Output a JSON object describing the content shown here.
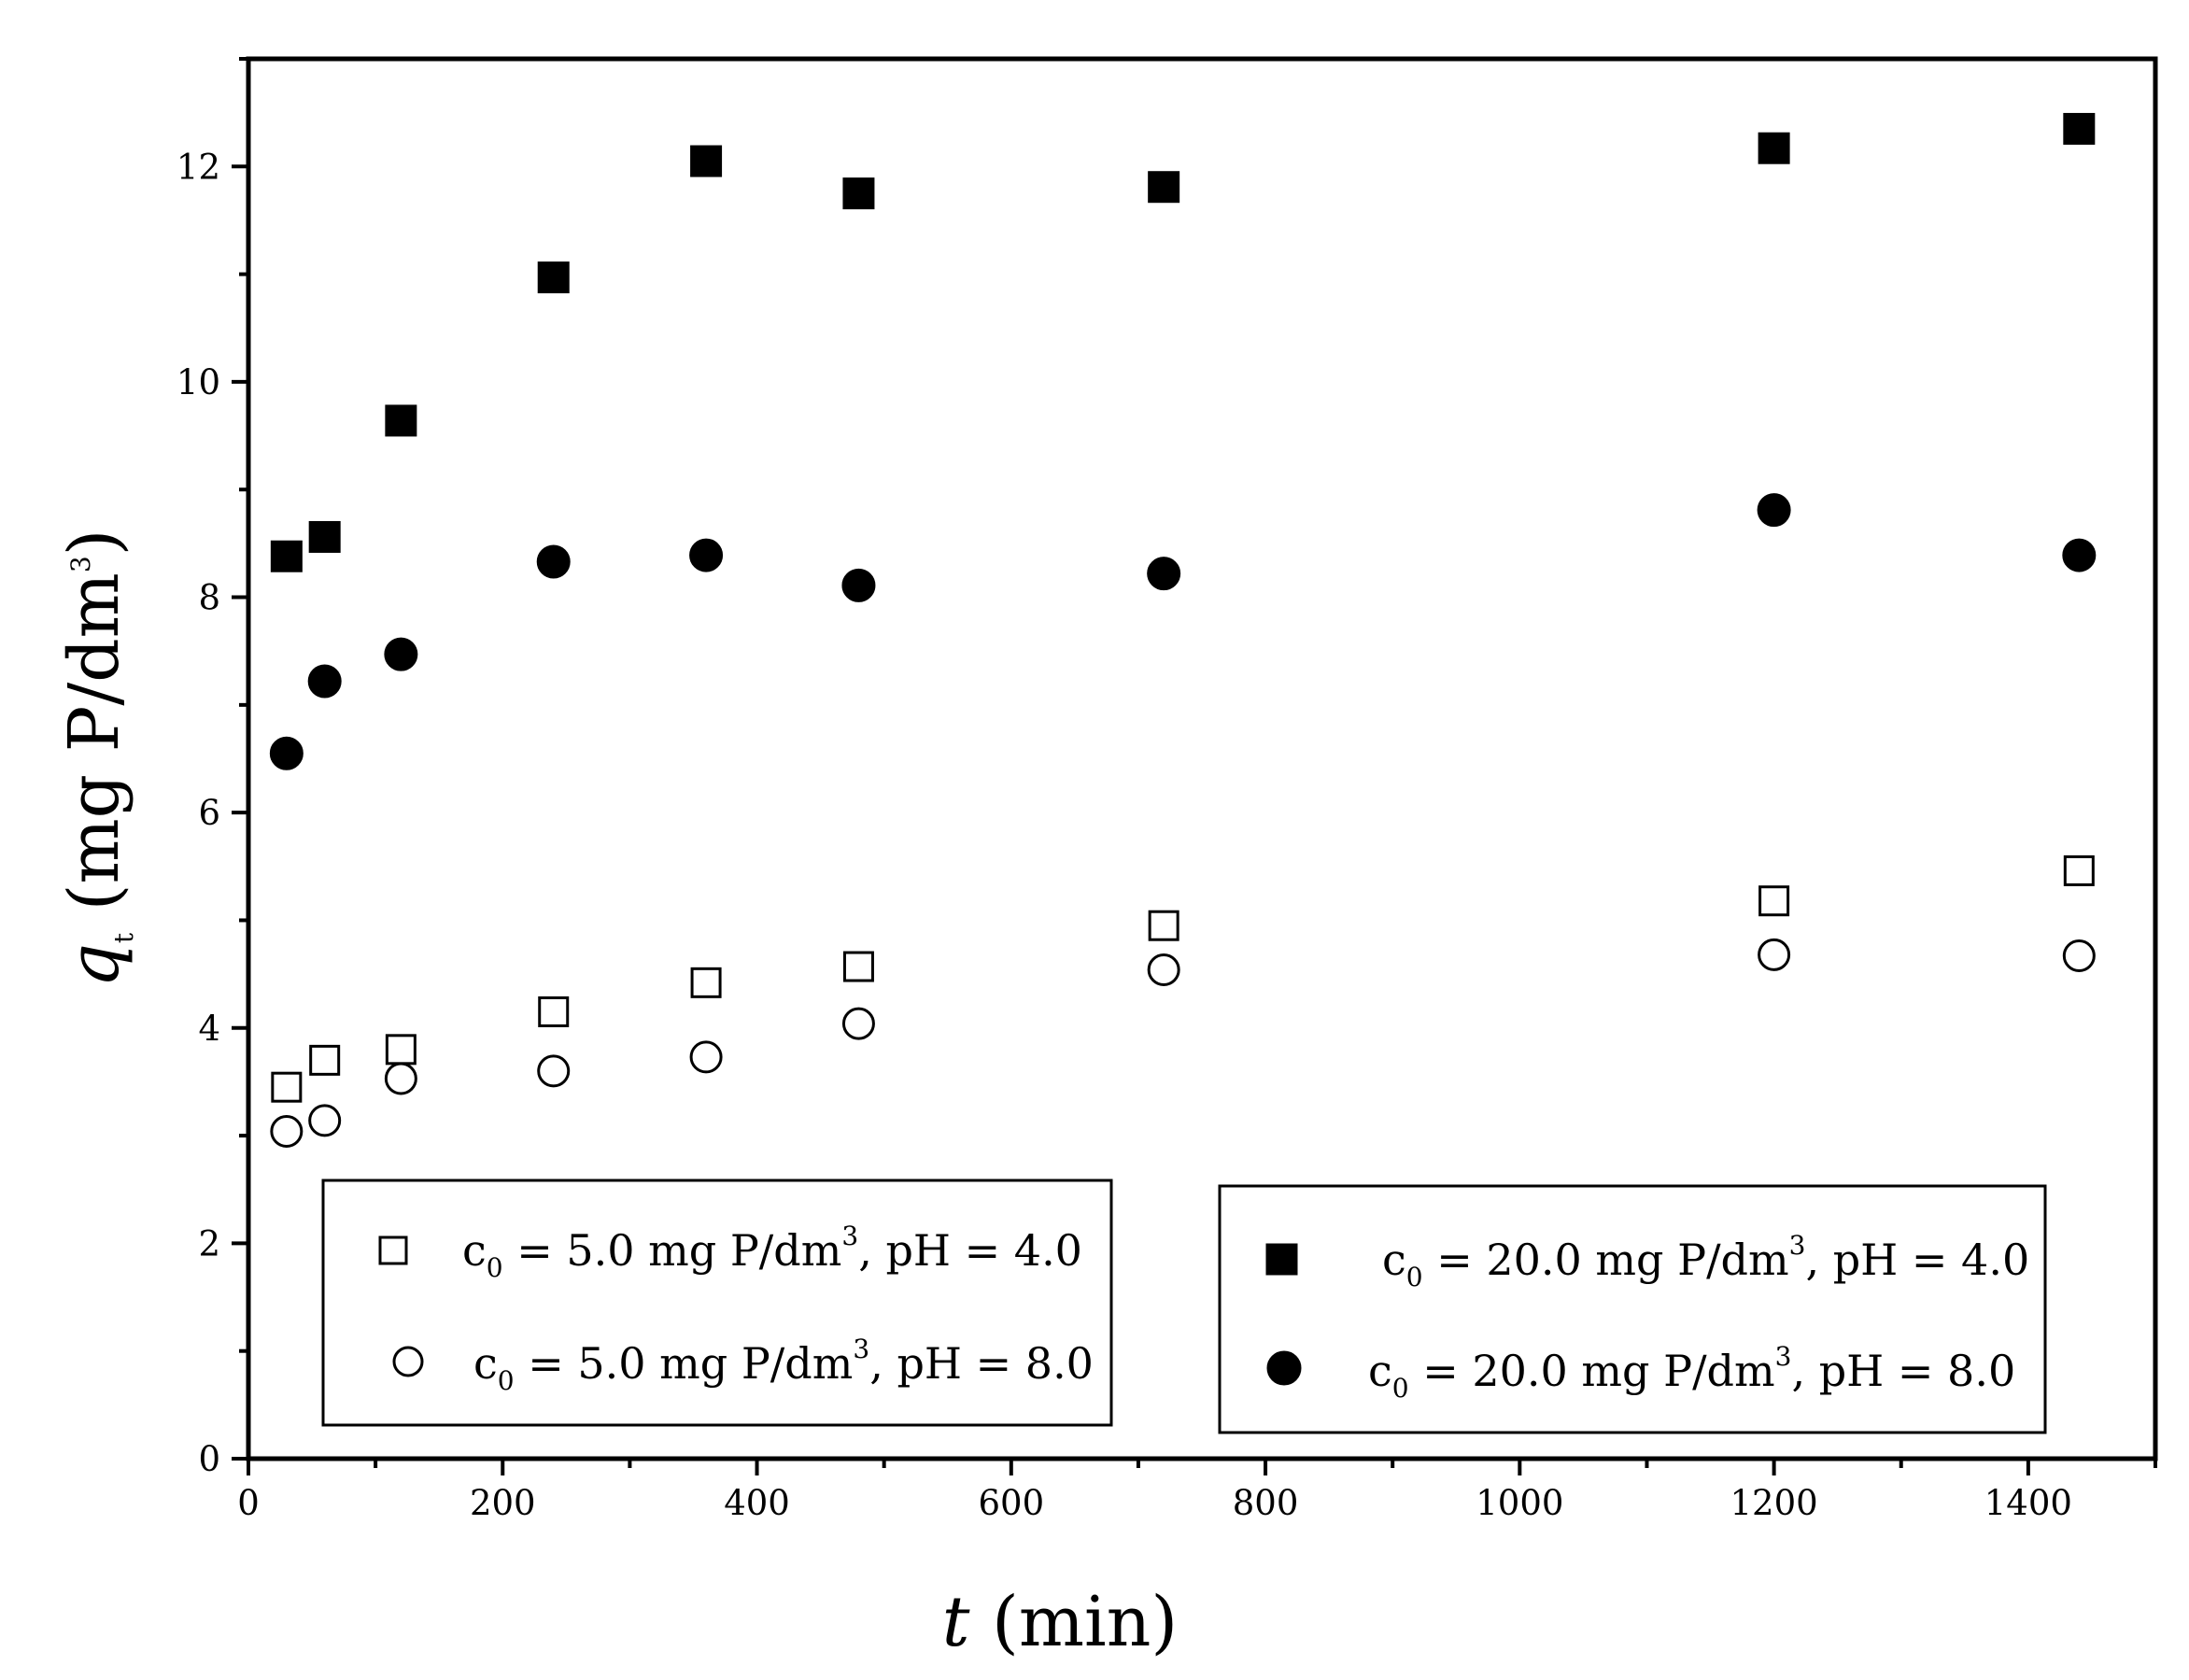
{
  "chart_data": {
    "type": "scatter",
    "xlabel": {
      "symbol": "t",
      "rest": " (min)"
    },
    "ylabel": {
      "symbol": "q",
      "subscript": "t",
      "rest": " (mg P/dm",
      "superscript": "3",
      "close": ")"
    },
    "xlim": [
      0,
      1500
    ],
    "ylim": [
      0,
      13
    ],
    "xticks": [
      0,
      200,
      400,
      600,
      800,
      1000,
      1200,
      1400
    ],
    "yticks": [
      0,
      2,
      4,
      6,
      8,
      10,
      12
    ],
    "grid": false,
    "x": [
      30,
      60,
      120,
      240,
      360,
      480,
      720,
      1200,
      1440
    ],
    "series": [
      {
        "key": "c5ph4",
        "name": {
          "pre": "c",
          "sub": "0",
          "mid": " = 5.0 mg P/dm",
          "sup": "3",
          "post": ", pH = 4.0"
        },
        "marker": "square-open",
        "values": [
          3.45,
          3.7,
          3.8,
          4.15,
          4.42,
          4.57,
          4.95,
          5.18,
          5.46
        ]
      },
      {
        "key": "c5ph8",
        "name": {
          "pre": "c",
          "sub": "0",
          "mid": " = 5.0 mg P/dm",
          "sup": "3",
          "post": ", pH = 8.0"
        },
        "marker": "circle-open",
        "values": [
          3.04,
          3.14,
          3.53,
          3.6,
          3.73,
          4.04,
          4.54,
          4.68,
          4.67
        ]
      },
      {
        "key": "c20ph4",
        "name": {
          "pre": "c",
          "sub": "0",
          "mid": " = 20.0 mg P/dm",
          "sup": "3",
          "post": ", pH = 4.0"
        },
        "marker": "square-filled",
        "values": [
          8.38,
          8.56,
          9.64,
          10.97,
          12.05,
          11.75,
          11.81,
          12.17,
          12.35
        ]
      },
      {
        "key": "c20ph8",
        "name": {
          "pre": "c",
          "sub": "0",
          "mid": " = 20.0 mg P/dm",
          "sup": "3",
          "post": ", pH = 8.0"
        },
        "marker": "circle-filled",
        "values": [
          6.55,
          7.22,
          7.47,
          8.33,
          8.39,
          8.11,
          8.22,
          8.81,
          8.39
        ]
      }
    ],
    "legends": [
      {
        "placement": "bottom-left",
        "series": [
          "c5ph4",
          "c5ph8"
        ]
      },
      {
        "placement": "bottom-right",
        "series": [
          "c20ph4",
          "c20ph8"
        ]
      }
    ]
  }
}
